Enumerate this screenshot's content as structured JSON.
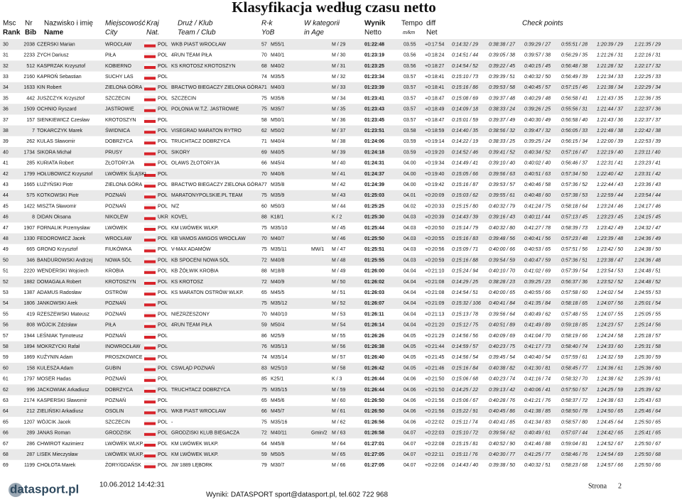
{
  "header": {
    "title": "Klasyfikacja według czasu netto",
    "top": [
      "Msc",
      "Nr",
      "Nazwisko i imię",
      "Miejscowość",
      "Kraj",
      "Druż / Klub",
      "R-k",
      "W kategorii",
      "Wynik",
      "Tempo",
      "diff",
      "Check points"
    ],
    "bottom": [
      "Rank",
      "Bib",
      "Name",
      "City",
      "Nat.",
      "Team / Club",
      "YoB",
      "in Age",
      "Netto",
      "m/km",
      "Net"
    ]
  },
  "table": {
    "rows": [
      [
        "30",
        "2038",
        "CZERSKI Marian",
        "WROCŁAW",
        "POL",
        "WKB PIAST WROCŁAW",
        "57",
        "M55/1",
        null,
        "M / 29",
        "01:22:48",
        "03.55",
        "+0:17:54",
        "0:14:32 / 29",
        "0:38:38 / 27",
        "0:39:29 / 27",
        "0:55:51 / 28",
        "1:20:39 / 29",
        "1:21:35 / 29"
      ],
      [
        "31",
        "2233",
        "ZYCH Dariusz",
        "PIŁA",
        "POL",
        "4RUN TEAM PIŁA",
        "70",
        "M40/1",
        null,
        "M / 30",
        "01:23:19",
        "03.56",
        "+0:18:24",
        "0:14:51 / 44",
        "0:39:05 / 38",
        "0:39:57 / 38",
        "0:56:29 / 35",
        "1:21:26 / 31",
        "1:22:16 / 31"
      ],
      [
        "32",
        "512",
        "KASPRZAK Krzysztof",
        "KOBIERNO",
        "POL",
        "KS KROTOSZ KROTOSZYN",
        "68",
        "M40/2",
        null,
        "M / 31",
        "01:23:25",
        "03.56",
        "+0:18:27",
        "0:14:54 / 52",
        "0:39:22 / 45",
        "0:40:15 / 45",
        "0:56:48 / 38",
        "1:21:28 / 32",
        "1:22:17 / 32"
      ],
      [
        "33",
        "2160",
        "KAPROŃ Sebastian",
        "SUCHY LAS",
        "POL",
        null,
        "74",
        "M35/5",
        null,
        "M / 32",
        "01:23:34",
        "03.57",
        "+0:18:41",
        "0:15:10 / 73",
        "0:39:39 / 51",
        "0:40:32 / 50",
        "0:56:49 / 39",
        "1:21:34 / 33",
        "1:22:25 / 33"
      ],
      [
        "34",
        "1633",
        "KIN Robert",
        "ZIELONA GÓRA",
        "POL",
        "BRACTWO BIEGACZY ZIELONA GÓRA",
        "71",
        "M40/3",
        null,
        "M / 33",
        "01:23:39",
        "03.57",
        "+0:18:41",
        "0:15:16 / 86",
        "0:39:53 / 58",
        "0:40:45 / 57",
        "0:57:15 / 46",
        "1:21:38 / 34",
        "1:22:29 / 34"
      ],
      [
        "35",
        "442",
        "JUSZCZYK Krzysztof",
        "SZCZECIN",
        "POL",
        "SZCZECIN",
        "75",
        "M35/6",
        null,
        "M / 34",
        "01:23:41",
        "03.57",
        "+0:18:47",
        "0:15:08 / 69",
        "0:39:37 / 48",
        "0:40:29 / 48",
        "0:56:58 / 41",
        "1:21:43 / 35",
        "1:22:36 / 35"
      ],
      [
        "36",
        "1509",
        "OCHNIO Ryszard",
        "JASTROWIE",
        "POL",
        "POLONIA W.T.Z. JASTROWIE",
        "75",
        "M35/7",
        null,
        "M / 35",
        "01:23:43",
        "03.57",
        "+0:18:49",
        "0:14:09 / 18",
        "0:38:33 / 24",
        "0:39:26 / 25",
        "0:55:56 / 31",
        "1:21:44 / 37",
        "1:22:37 / 36"
      ],
      [
        "37",
        "157",
        "SIENKIEWICZ Czesław",
        "KROTOSZYN",
        "POL",
        null,
        "58",
        "M50/1",
        null,
        "M / 36",
        "01:23:45",
        "03.57",
        "+0:18:47",
        "0:15:01 / 59",
        "0:39:37 / 49",
        "0:40:30 / 49",
        "0:56:58 / 40",
        "1:21:43 / 36",
        "1:22:37 / 37"
      ],
      [
        "38",
        "7",
        "TOKARCZYK Marek",
        "ŚWIDNICA",
        "POL",
        "VISEGRAD MARATON RYTRO",
        "62",
        "M50/2",
        null,
        "M / 37",
        "01:23:51",
        "03.58",
        "+0:18:59",
        "0:14:40 / 35",
        "0:38:56 / 32",
        "0:39:47 / 32",
        "0:56:05 / 33",
        "1:21:48 / 38",
        "1:22:42 / 38"
      ],
      [
        "39",
        "262",
        "KULAS Sławomir",
        "DOBRZYCA",
        "POL",
        "TRUCHTACZ DOBRZYCA",
        "71",
        "M40/4",
        null,
        "M / 38",
        "01:24:06",
        "03.59",
        "+0:19:14",
        "0:14:22 / 19",
        "0:38:33 / 25",
        "0:39:25 / 24",
        "0:56:15 / 34",
        "1:22:00 / 39",
        "1:22:53 / 39"
      ],
      [
        "40",
        "1734",
        "SIKORA Michał",
        "PRUSY",
        "POL",
        "SIKORY",
        "69",
        "M40/5",
        null,
        "M / 39",
        "01:24:18",
        "03.59",
        "+0:19:20",
        "0:14:52 / 46",
        "0:39:41 / 52",
        "0:40:34 / 52",
        "0:57:16 / 47",
        "1:22:19 / 40",
        "1:23:11 / 40"
      ],
      [
        "41",
        "285",
        "KURIATA Robert",
        "ZŁOTORYJA",
        "POL",
        "OLAWS ZŁOTORYJA",
        "66",
        "M45/4",
        null,
        "M / 40",
        "01:24:31",
        "04.00",
        "+0:19:34",
        "0:14:49 / 41",
        "0:39:10 / 40",
        "0:40:02 / 40",
        "0:56:46 / 37",
        "1:22:31 / 41",
        "1:23:23 / 41"
      ],
      [
        "42",
        "1799",
        "HOŁUBOWICZ Krzysztof",
        "LWÓWEK ŚLĄSKI",
        "POL",
        null,
        "70",
        "M40/6",
        null,
        "M / 41",
        "01:24:37",
        "04.00",
        "+0:19:40",
        "0:15:05 / 66",
        "0:39:56 / 63",
        "0:40:51 / 63",
        "0:57:34 / 50",
        "1:22:40 / 42",
        "1:23:31 / 42"
      ],
      [
        "43",
        "1665",
        "ŁUŻYŃSKI Piotr",
        "ZIELONA GÓRA",
        "POL",
        "BRACTWO BIEGACZY ZIELONA GÓRA",
        "77",
        "M35/8",
        null,
        "M / 42",
        "01:24:39",
        "04.00",
        "+0:19:42",
        "0:15:16 / 87",
        "0:39:53 / 57",
        "0:40:46 / 58",
        "0:57:36 / 52",
        "1:22:44 / 43",
        "1:23:36 / 43"
      ],
      [
        "44",
        "575",
        "KOTKOWSKI Piotr",
        "POZNAŃ",
        "POL",
        "MARATONYPOLSKIE.PL TEAM",
        "75",
        "M35/9",
        null,
        "M / 43",
        "01:25:03",
        "04.01",
        "+0:20:09",
        "0:15:03 / 62",
        "0:39:55 / 61",
        "0:40:48 / 60",
        "0:57:38 / 53",
        "1:22:59 / 44",
        "1:23:54 / 44"
      ],
      [
        "45",
        "1422",
        "MISZTA Sławomir",
        "POZNAŃ",
        "POL",
        "N/Z",
        "60",
        "M50/3",
        null,
        "M / 44",
        "01:25:25",
        "04.02",
        "+0:20:33",
        "0:15:15 / 80",
        "0:40:32 / 79",
        "0:41:24 / 75",
        "0:58:18 / 64",
        "1:23:24 / 46",
        "1:24:17 / 46"
      ],
      [
        "46",
        "8",
        "DIDAN Oksana",
        "NIKOLEW",
        "UKR",
        "KOVEL",
        "88",
        "K18/1",
        null,
        "K / 2",
        "01:25:30",
        "04.03",
        "+0:20:39",
        "0:14:43 / 39",
        "0:39:16 / 43",
        "0:40:11 / 44",
        "0:57:13 / 45",
        "1:23:23 / 45",
        "1:24:15 / 45"
      ],
      [
        "47",
        "1907",
        "FORNALIK Przemysław",
        "LWÓWEK",
        "POL",
        "KM LWÓWEK WLKP.",
        "75",
        "M35/10",
        null,
        "M / 45",
        "01:25:44",
        "04.03",
        "+0:20:50",
        "0:15:14 / 79",
        "0:40:32 / 80",
        "0:41:27 / 78",
        "0:58:39 / 73",
        "1:23:42 / 49",
        "1:24:32 / 47"
      ],
      [
        "48",
        "1330",
        "FEDOROWICZ Jacek",
        "WROCŁAW",
        "POL",
        "KB VAMOS AMIGOS WROCŁAW",
        "70",
        "M40/7",
        null,
        "M / 46",
        "01:25:50",
        "04.03",
        "+0:20:55",
        "0:15:16 / 83",
        "0:39:48 / 56",
        "0:40:41 / 56",
        "0:57:23 / 48",
        "1:23:39 / 48",
        "1:24:36 / 49"
      ],
      [
        "49",
        "665",
        "GRONO Krzysztof",
        "FIUKÓWKA",
        "POL",
        "V-MAX ADAMÓW",
        "75",
        "M35/11",
        "MW/1",
        "M / 47",
        "01:25:51",
        "04.03",
        "+0:20:56",
        "0:15:09 / 71",
        "0:40:00 / 66",
        "0:40:53 / 65",
        "0:57:51 / 56",
        "1:23:42 / 50",
        "1:24:38 / 50"
      ],
      [
        "50",
        "346",
        "BANDUROWSKI Andrzej",
        "NOWA SÓL",
        "POL",
        "KB SPOCENI NOWA SÓL",
        "72",
        "M40/8",
        null,
        "M / 48",
        "01:25:55",
        "04.03",
        "+0:20:59",
        "0:15:16 / 88",
        "0:39:54 / 59",
        "0:40:47 / 59",
        "0:57:36 / 51",
        "1:23:38 / 47",
        "1:24:36 / 48"
      ],
      [
        "51",
        "2220",
        "WENDERSKI Wojciech",
        "KROBIA",
        "POL",
        "KB ŻÓŁWIK KROBIA",
        "88",
        "M18/8",
        null,
        "M / 49",
        "01:26:00",
        "04.04",
        "+0:21:10",
        "0:15:24 / 94",
        "0:40:10 / 70",
        "0:41:02 / 69",
        "0:57:39 / 54",
        "1:23:54 / 53",
        "1:24:48 / 51"
      ],
      [
        "52",
        "1882",
        "DOMAGAŁA Robert",
        "KROTOSZYN",
        "POL",
        "KS KROTOSZ",
        "72",
        "M40/9",
        null,
        "M / 50",
        "01:26:02",
        "04.04",
        "+0:21:08",
        "0:14:29 / 25",
        "0:38:28 / 23",
        "0:39:25 / 23",
        "0:56:37 / 36",
        "1:23:52 / 52",
        "1:24:48 / 52"
      ],
      [
        "53",
        "1387",
        "ADAMUS Radosław",
        "OSTRÓW",
        "POL",
        "KS MARATON OSTRÓW WLKP.",
        "65",
        "M45/5",
        null,
        "M / 51",
        "01:26:03",
        "04.04",
        "+0:21:08",
        "0:14:54 / 51",
        "0:40:00 / 65",
        "0:40:55 / 66",
        "0:57:58 / 60",
        "1:24:02 / 54",
        "1:24:55 / 53"
      ],
      [
        "54",
        "1806",
        "JANKOWSKI Arek",
        "POZNAŃ",
        "POL",
        null,
        "75",
        "M35/12",
        null,
        "M / 52",
        "01:26:07",
        "04.04",
        "+0:21:09",
        "0:15:32 / 106",
        "0:40:41 / 84",
        "0:41:35 / 84",
        "0:58:18 / 65",
        "1:24:07 / 56",
        "1:25:01 / 54"
      ],
      [
        "55",
        "419",
        "RZESZEWSKI Mateusz",
        "POZNAŃ",
        "POL",
        "NIEZRZESZONY",
        "70",
        "M40/10",
        null,
        "M / 53",
        "01:26:11",
        "04.04",
        "+0:21:13",
        "0:15:13 / 78",
        "0:39:56 / 64",
        "0:40:49 / 62",
        "0:57:48 / 55",
        "1:24:07 / 55",
        "1:25:05 / 55"
      ],
      [
        "56",
        "808",
        "WÓJCIK Zdzisław",
        "PIŁA",
        "POL",
        "4RUN TEAM PIŁA",
        "59",
        "M50/4",
        null,
        "M / 54",
        "01:26:14",
        "04.04",
        "+0:21:20",
        "0:15:12 / 75",
        "0:40:51 / 89",
        "0:41:49 / 89",
        "0:59:18 / 85",
        "1:24:23 / 57",
        "1:25:14 / 56"
      ],
      [
        "57",
        "1944",
        "LEŚNIAK Tymoteusz",
        "POZNAŃ",
        "POL",
        null,
        "86",
        "M25/9",
        null,
        "M / 55",
        "01:26:26",
        "04.05",
        "+0:21:29",
        "0:14:56 / 56",
        "0:40:09 / 69",
        "0:41:04 / 70",
        "0:58:19 / 66",
        "1:24:24 / 58",
        "1:25:18 / 57"
      ],
      [
        "58",
        "1894",
        "MOKRZYCKI Rafał",
        "INOWROCŁAW",
        "POL",
        null,
        "76",
        "M35/13",
        null,
        "M / 56",
        "01:26:38",
        "04.05",
        "+0:21:44",
        "0:14:59 / 57",
        "0:40:23 / 75",
        "0:41:17 / 73",
        "0:58:40 / 74",
        "1:24:33 / 60",
        "1:25:31 / 58"
      ],
      [
        "59",
        "1869",
        "KUŹYNIN Adam",
        "PROSZKOWICE",
        "POL",
        null,
        "74",
        "M35/14",
        null,
        "M / 57",
        "01:26:40",
        "04.05",
        "+0:21:45",
        "0:14:56 / 54",
        "0:39:45 / 54",
        "0:40:40 / 54",
        "0:57:59 / 61",
        "1:24:32 / 59",
        "1:25:30 / 59"
      ],
      [
        "60",
        "158",
        "KULESZA Adam",
        "GUBIN",
        "POL",
        "CSWLĄD POZNAŃ",
        "83",
        "M25/10",
        null,
        "M / 58",
        "01:26:42",
        "04.05",
        "+0:21:46",
        "0:15:16 / 84",
        "0:40:38 / 82",
        "0:41:30 / 81",
        "0:58:45 / 77",
        "1:24:36 / 61",
        "1:25:36 / 60"
      ],
      [
        "61",
        "1797",
        "MOSER Hadas",
        "POZNAŃ",
        "POL",
        null,
        "85",
        "K25/1",
        null,
        "K / 3",
        "01:26:44",
        "04.06",
        "+0:21:50",
        "0:15:06 / 68",
        "0:40:23 / 74",
        "0:41:16 / 74",
        "0:58:32 / 70",
        "1:24:38 / 62",
        "1:25:39 / 61"
      ],
      [
        "62",
        "996",
        "JACKOWIAK Arkadiusz",
        "DOBRZYCA",
        "POL",
        "TRUCHTACZ DOBRZYCA",
        "75",
        "M35/15",
        null,
        "M / 59",
        "01:26:44",
        "04.06",
        "+0:21:50",
        "0:14:25 / 22",
        "0:39:13 / 42",
        "0:40:06 / 41",
        "0:57:50 / 57",
        "1:24:25 / 59",
        "1:25:39 / 62"
      ],
      [
        "63",
        "2174",
        "KASPERSKI Sławomir",
        "POZNAŃ",
        "POL",
        null,
        "65",
        "M45/6",
        null,
        "M / 60",
        "01:26:50",
        "04.06",
        "+0:21:56",
        "0:15:06 / 67",
        "0:40:28 / 76",
        "0:41:21 / 76",
        "0:58:37 / 72",
        "1:24:38 / 63",
        "1:25:43 / 63"
      ],
      [
        "64",
        "212",
        "ZIELIŃSKI Arkadiusz",
        "OSOLIN",
        "POL",
        "WKB PIAST WROCŁAW",
        "66",
        "M45/7",
        null,
        "M / 61",
        "01:26:50",
        "04.06",
        "+0:21:56",
        "0:15:22 / 91",
        "0:40:45 / 86",
        "0:41:38 / 85",
        "0:58:50 / 78",
        "1:24:50 / 65",
        "1:25:46 / 64"
      ],
      [
        "65",
        "1207",
        "WÓJCIK Jacek",
        "SZCZECIN",
        "POL",
        "-",
        "75",
        "M35/16",
        null,
        "M / 62",
        "01:26:56",
        "04.06",
        "+0:22:02",
        "0:15:11 / 74",
        "0:40:41 / 85",
        "0:41:34 / 83",
        "0:58:57 / 80",
        "1:24:45 / 64",
        "1:25:50 / 65"
      ],
      [
        "66",
        "289",
        "JANAS Roman",
        "GRODZISK",
        "POL",
        "GRODZISKI KLUB BIEGACZA",
        "72",
        "M40/11",
        "Gmin/2",
        "M / 63",
        "01:26:58",
        "04.07",
        "+0:22:03",
        "0:15:10 / 72",
        "0:39:56 / 62",
        "0:40:49 / 61",
        "0:57:07 / 44",
        "1:24:42 / 65",
        "1:25:41 / 65"
      ],
      [
        "67",
        "286",
        "CHWIROT Kazimierz",
        "LWÓWEK WLKP.",
        "POL",
        "KM LWÓWEK WLKP.",
        "64",
        "M45/8",
        null,
        "M / 64",
        "01:27:01",
        "04.07",
        "+0:22:08",
        "0:15:15 / 81",
        "0:40:52 / 90",
        "0:41:46 / 88",
        "0:59:04 / 81",
        "1:24:52 / 67",
        "1:25:50 / 67"
      ],
      [
        "68",
        "287",
        "LISEK Mieczysław",
        "LWÓWEK WLKP.",
        "POL",
        "KM LWÓWEK WLKP.",
        "59",
        "M50/5",
        null,
        "M / 65",
        "01:27:05",
        "04.07",
        "+0:22:11",
        "0:15:11 / 76",
        "0:40:30 / 77",
        "0:41:25 / 77",
        "0:58:46 / 76",
        "1:24:54 / 69",
        "1:25:50 / 68"
      ],
      [
        "69",
        "1199",
        "CHOŁOTA Marek",
        "ŻORY/GDAŃSK",
        "POL",
        "JW 1889 LĘBORK",
        "79",
        "M30/7",
        null,
        "M / 66",
        "01:27:05",
        "04.07",
        "+0:22:06",
        "0:14:43 / 40",
        "0:39:38 / 50",
        "0:40:32 / 51",
        "0:58:23 / 68",
        "1:24:57 / 66",
        "1:25:50 / 66"
      ]
    ]
  },
  "footer": {
    "logo": "datasport.pl",
    "timestamp": "10.06.2012 14:42:31",
    "contact": "Wyniki: DATASPORT sport@datasport.pl, tel.602 722 968",
    "page_label": "Strona",
    "page_number": "2"
  }
}
